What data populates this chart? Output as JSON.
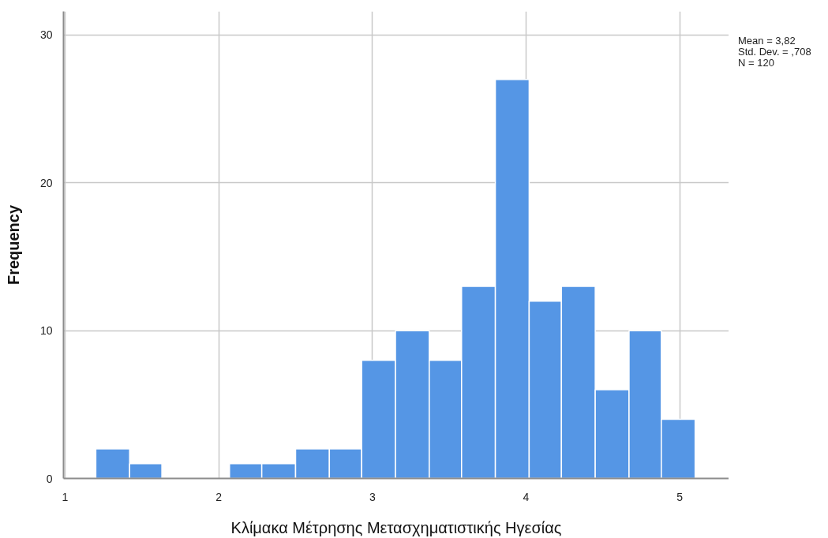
{
  "chart_data": {
    "type": "histogram",
    "xlabel": "Κλίμακα Μέτρησης Μετασχηματιστικής Ηγεσίας",
    "ylabel": "Frequency",
    "bins": [
      1.2,
      1.42,
      1.63,
      2.07,
      2.28,
      2.5,
      2.72,
      2.93,
      3.15,
      3.37,
      3.58,
      3.8,
      4.02,
      4.23,
      4.45,
      4.67,
      4.88,
      5.1
    ],
    "values": [
      2,
      1,
      0,
      1,
      1,
      2,
      2,
      8,
      10,
      8,
      13,
      27,
      12,
      13,
      6,
      10,
      4
    ],
    "color": "#5596e5",
    "xlim": [
      0.99,
      5.32
    ],
    "xticks": [
      1,
      2,
      3,
      4,
      5
    ],
    "ylim": [
      0,
      31.6
    ],
    "yticks": [
      0,
      10,
      20,
      30
    ],
    "grid": true,
    "annotations": [
      "Mean = 3,82",
      "Std. Dev. = ,708",
      "N = 120"
    ]
  }
}
